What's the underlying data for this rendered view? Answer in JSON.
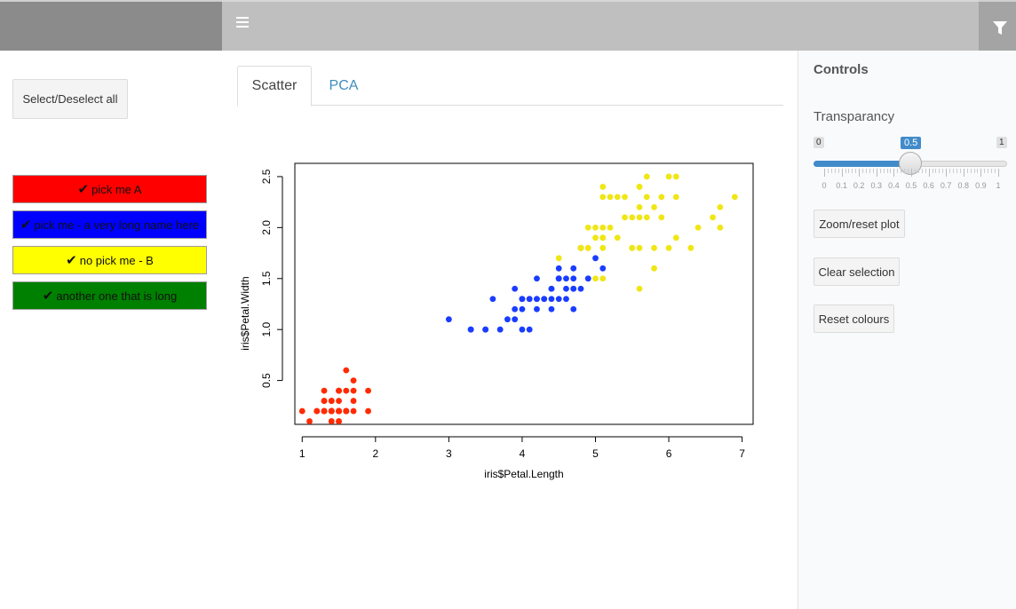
{
  "header": {
    "menu_icon": "hamburger-icon",
    "filter_icon": "filter-icon"
  },
  "sidebar": {
    "select_all_label": "Select/Deselect all",
    "picks": [
      {
        "label": "pick me A",
        "color": "#ff0000",
        "text_color": "#111111"
      },
      {
        "label": "pick me - a very long name here",
        "color": "#0000ff",
        "text_color": "#111111"
      },
      {
        "label": "no pick me - B",
        "color": "#ffff00",
        "text_color": "#111111"
      },
      {
        "label": "another one that is long",
        "color": "#008000",
        "text_color": "#111111"
      }
    ],
    "check_glyph": "✔"
  },
  "tabs": [
    {
      "label": "Scatter",
      "active": true
    },
    {
      "label": "PCA",
      "active": false
    }
  ],
  "controls": {
    "title": "Controls",
    "transparency_label": "Transparancy",
    "slider": {
      "min": 0,
      "max": 1,
      "value": 0.5,
      "min_label": "0",
      "max_label": "1",
      "value_label": "0.5",
      "tick_labels": [
        "0",
        "0.1",
        "0.2",
        "0.3",
        "0.4",
        "0.5",
        "0.6",
        "0.7",
        "0.8",
        "0.9",
        "1"
      ]
    },
    "zoom_label": "Zoom/reset plot",
    "clear_label": "Clear selection",
    "reset_label": "Reset colours"
  },
  "chart_data": {
    "type": "scatter",
    "title": "",
    "xlabel": "iris$Petal.Length",
    "ylabel": "iris$Petal.Width",
    "xlim": [
      0.9,
      7.15
    ],
    "ylim": [
      0.07,
      2.63
    ],
    "xticks": [
      1,
      2,
      3,
      4,
      5,
      6,
      7
    ],
    "yticks": [
      0.5,
      1.0,
      1.5,
      2.0,
      2.5
    ],
    "ytick_labels": [
      "0.5",
      "1.0",
      "1.5",
      "2.0",
      "2.5"
    ],
    "series": [
      {
        "color": "#ff2a00",
        "points": [
          [
            1.4,
            0.2
          ],
          [
            1.4,
            0.2
          ],
          [
            1.3,
            0.2
          ],
          [
            1.5,
            0.2
          ],
          [
            1.4,
            0.2
          ],
          [
            1.7,
            0.4
          ],
          [
            1.4,
            0.3
          ],
          [
            1.5,
            0.2
          ],
          [
            1.4,
            0.2
          ],
          [
            1.5,
            0.1
          ],
          [
            1.5,
            0.2
          ],
          [
            1.6,
            0.2
          ],
          [
            1.4,
            0.1
          ],
          [
            1.1,
            0.1
          ],
          [
            1.2,
            0.2
          ],
          [
            1.5,
            0.4
          ],
          [
            1.3,
            0.4
          ],
          [
            1.4,
            0.3
          ],
          [
            1.7,
            0.3
          ],
          [
            1.5,
            0.3
          ],
          [
            1.7,
            0.2
          ],
          [
            1.5,
            0.4
          ],
          [
            1.0,
            0.2
          ],
          [
            1.7,
            0.5
          ],
          [
            1.9,
            0.2
          ],
          [
            1.6,
            0.2
          ],
          [
            1.6,
            0.4
          ],
          [
            1.5,
            0.2
          ],
          [
            1.4,
            0.2
          ],
          [
            1.6,
            0.2
          ],
          [
            1.6,
            0.2
          ],
          [
            1.5,
            0.4
          ],
          [
            1.5,
            0.1
          ],
          [
            1.4,
            0.2
          ],
          [
            1.5,
            0.2
          ],
          [
            1.2,
            0.2
          ],
          [
            1.3,
            0.2
          ],
          [
            1.4,
            0.1
          ],
          [
            1.3,
            0.2
          ],
          [
            1.5,
            0.2
          ],
          [
            1.3,
            0.3
          ],
          [
            1.3,
            0.3
          ],
          [
            1.3,
            0.2
          ],
          [
            1.6,
            0.6
          ],
          [
            1.9,
            0.4
          ],
          [
            1.4,
            0.3
          ],
          [
            1.6,
            0.2
          ],
          [
            1.4,
            0.2
          ],
          [
            1.5,
            0.2
          ],
          [
            1.4,
            0.2
          ]
        ]
      },
      {
        "color": "#1a3cff",
        "points": [
          [
            4.7,
            1.4
          ],
          [
            4.5,
            1.5
          ],
          [
            4.9,
            1.5
          ],
          [
            4.0,
            1.3
          ],
          [
            4.6,
            1.5
          ],
          [
            4.5,
            1.3
          ],
          [
            4.7,
            1.6
          ],
          [
            3.3,
            1.0
          ],
          [
            4.6,
            1.3
          ],
          [
            3.9,
            1.4
          ],
          [
            3.5,
            1.0
          ],
          [
            4.2,
            1.5
          ],
          [
            4.0,
            1.0
          ],
          [
            4.7,
            1.4
          ],
          [
            3.6,
            1.3
          ],
          [
            4.4,
            1.4
          ],
          [
            4.5,
            1.5
          ],
          [
            4.1,
            1.0
          ],
          [
            4.5,
            1.5
          ],
          [
            3.9,
            1.1
          ],
          [
            4.8,
            1.8
          ],
          [
            4.0,
            1.3
          ],
          [
            4.9,
            1.5
          ],
          [
            4.7,
            1.2
          ],
          [
            4.3,
            1.3
          ],
          [
            4.4,
            1.4
          ],
          [
            4.8,
            1.4
          ],
          [
            5.0,
            1.7
          ],
          [
            4.5,
            1.5
          ],
          [
            3.5,
            1.0
          ],
          [
            3.8,
            1.1
          ],
          [
            3.7,
            1.0
          ],
          [
            3.9,
            1.2
          ],
          [
            5.1,
            1.6
          ],
          [
            4.5,
            1.5
          ],
          [
            4.5,
            1.6
          ],
          [
            4.7,
            1.5
          ],
          [
            4.4,
            1.3
          ],
          [
            4.1,
            1.3
          ],
          [
            4.0,
            1.3
          ],
          [
            4.4,
            1.2
          ],
          [
            4.6,
            1.4
          ],
          [
            4.0,
            1.2
          ],
          [
            3.3,
            1.0
          ],
          [
            4.2,
            1.3
          ],
          [
            4.2,
            1.2
          ],
          [
            4.2,
            1.3
          ],
          [
            4.3,
            1.3
          ],
          [
            3.0,
            1.1
          ],
          [
            4.1,
            1.3
          ]
        ]
      },
      {
        "color": "#f0e614",
        "points": [
          [
            6.0,
            2.5
          ],
          [
            5.1,
            1.9
          ],
          [
            5.9,
            2.1
          ],
          [
            5.6,
            1.8
          ],
          [
            5.8,
            2.2
          ],
          [
            6.6,
            2.1
          ],
          [
            4.5,
            1.7
          ],
          [
            6.3,
            1.8
          ],
          [
            5.8,
            1.8
          ],
          [
            6.1,
            2.5
          ],
          [
            5.1,
            2.0
          ],
          [
            5.3,
            1.9
          ],
          [
            5.5,
            2.1
          ],
          [
            5.0,
            2.0
          ],
          [
            5.1,
            2.4
          ],
          [
            5.3,
            2.3
          ],
          [
            5.5,
            1.8
          ],
          [
            6.7,
            2.2
          ],
          [
            6.9,
            2.3
          ],
          [
            5.0,
            1.5
          ],
          [
            5.7,
            2.3
          ],
          [
            4.9,
            2.0
          ],
          [
            6.7,
            2.0
          ],
          [
            4.9,
            1.8
          ],
          [
            5.7,
            2.1
          ],
          [
            6.0,
            1.8
          ],
          [
            4.8,
            1.8
          ],
          [
            4.9,
            1.8
          ],
          [
            5.6,
            2.1
          ],
          [
            5.8,
            1.6
          ],
          [
            6.1,
            1.9
          ],
          [
            6.4,
            2.0
          ],
          [
            5.6,
            2.2
          ],
          [
            5.1,
            1.5
          ],
          [
            5.6,
            1.4
          ],
          [
            6.1,
            2.3
          ],
          [
            5.6,
            2.4
          ],
          [
            5.5,
            1.8
          ],
          [
            4.8,
            1.8
          ],
          [
            5.4,
            2.1
          ],
          [
            5.6,
            2.4
          ],
          [
            5.1,
            2.3
          ],
          [
            5.1,
            1.9
          ],
          [
            5.9,
            2.3
          ],
          [
            5.7,
            2.5
          ],
          [
            5.2,
            2.3
          ],
          [
            5.0,
            1.9
          ],
          [
            5.2,
            2.0
          ],
          [
            5.4,
            2.3
          ],
          [
            5.1,
            1.8
          ]
        ]
      }
    ]
  }
}
